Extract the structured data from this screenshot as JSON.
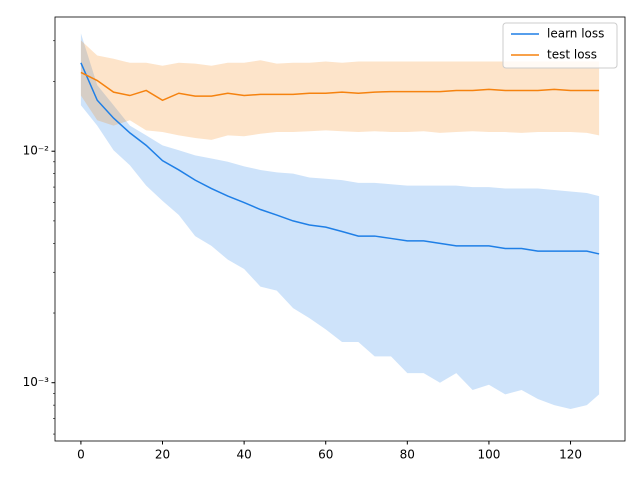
{
  "chart_data": {
    "type": "line",
    "log_y": true,
    "legend": "upper right",
    "x": [
      0,
      4,
      8,
      12,
      16,
      20,
      24,
      28,
      32,
      36,
      40,
      44,
      48,
      52,
      56,
      60,
      64,
      68,
      72,
      76,
      80,
      84,
      88,
      92,
      96,
      100,
      104,
      108,
      112,
      116,
      120,
      124,
      127
    ],
    "series": [
      {
        "name": "learn loss",
        "color": "#1f7fe6",
        "values": [
          0.0241,
          0.0166,
          0.0139,
          0.012,
          0.0106,
          0.0091,
          0.0083,
          0.0075,
          0.0069,
          0.0064,
          0.006,
          0.0056,
          0.0053,
          0.005,
          0.0048,
          0.0047,
          0.0045,
          0.0043,
          0.0043,
          0.0042,
          0.0041,
          0.0041,
          0.004,
          0.0039,
          0.0039,
          0.0039,
          0.0038,
          0.0038,
          0.0037,
          0.0037,
          0.0037,
          0.0037,
          0.0036
        ],
        "upper": [
          0.0323,
          0.0193,
          0.0158,
          0.0129,
          0.0117,
          0.0106,
          0.0101,
          0.0096,
          0.0093,
          0.009,
          0.0086,
          0.0083,
          0.0081,
          0.008,
          0.0077,
          0.0076,
          0.0075,
          0.0073,
          0.0073,
          0.0072,
          0.0071,
          0.0071,
          0.0071,
          0.0071,
          0.007,
          0.007,
          0.0069,
          0.0069,
          0.0069,
          0.0068,
          0.0067,
          0.0066,
          0.0064
        ],
        "lower": [
          0.0158,
          0.0129,
          0.0101,
          0.0087,
          0.0071,
          0.0061,
          0.0053,
          0.0043,
          0.0039,
          0.0034,
          0.0031,
          0.0026,
          0.0025,
          0.0021,
          0.0019,
          0.0017,
          0.0015,
          0.0015,
          0.0013,
          0.0013,
          0.0011,
          0.0011,
          0.001,
          0.0011,
          0.00093,
          0.00098,
          0.00089,
          0.00093,
          0.00085,
          0.0008,
          0.00077,
          0.0008,
          0.00089
        ]
      },
      {
        "name": "test loss",
        "color": "#f5820f",
        "values": [
          0.0219,
          0.0202,
          0.018,
          0.0174,
          0.0183,
          0.0166,
          0.0178,
          0.0173,
          0.0173,
          0.0178,
          0.0174,
          0.0176,
          0.0176,
          0.0176,
          0.0178,
          0.0178,
          0.018,
          0.0178,
          0.018,
          0.0181,
          0.0181,
          0.0181,
          0.0181,
          0.0183,
          0.0183,
          0.0185,
          0.0183,
          0.0183,
          0.0183,
          0.0185,
          0.0183,
          0.0183,
          0.0183
        ],
        "upper": [
          0.0301,
          0.0259,
          0.0251,
          0.0241,
          0.0241,
          0.0234,
          0.0241,
          0.0239,
          0.0234,
          0.0241,
          0.0241,
          0.0247,
          0.0239,
          0.0241,
          0.0241,
          0.0244,
          0.0241,
          0.0244,
          0.0244,
          0.0244,
          0.0244,
          0.0244,
          0.0244,
          0.0244,
          0.0244,
          0.0244,
          0.0244,
          0.0244,
          0.0244,
          0.0244,
          0.0244,
          0.0244,
          0.0244
        ],
        "lower": [
          0.0174,
          0.0136,
          0.0129,
          0.0136,
          0.0123,
          0.0121,
          0.0117,
          0.0114,
          0.0112,
          0.0117,
          0.0116,
          0.0119,
          0.0121,
          0.0121,
          0.0122,
          0.0123,
          0.0122,
          0.0121,
          0.0122,
          0.0121,
          0.0121,
          0.0122,
          0.012,
          0.0121,
          0.0122,
          0.0121,
          0.0121,
          0.012,
          0.0121,
          0.0121,
          0.0121,
          0.012,
          0.0117
        ]
      }
    ],
    "xlim": [
      -6.35,
      133.35
    ],
    "xticks": [
      0,
      20,
      40,
      60,
      80,
      100,
      120
    ],
    "ylim": [
      0.00056,
      0.038
    ],
    "yticks": [
      {
        "value": 0.001,
        "label": "10⁻³"
      },
      {
        "value": 0.01,
        "label": "10⁻²"
      }
    ],
    "yminor_ticks": [
      0.0006,
      0.0007,
      0.0008,
      0.0009,
      0.002,
      0.003,
      0.004,
      0.005,
      0.006,
      0.007,
      0.008,
      0.009,
      0.02,
      0.03
    ]
  }
}
